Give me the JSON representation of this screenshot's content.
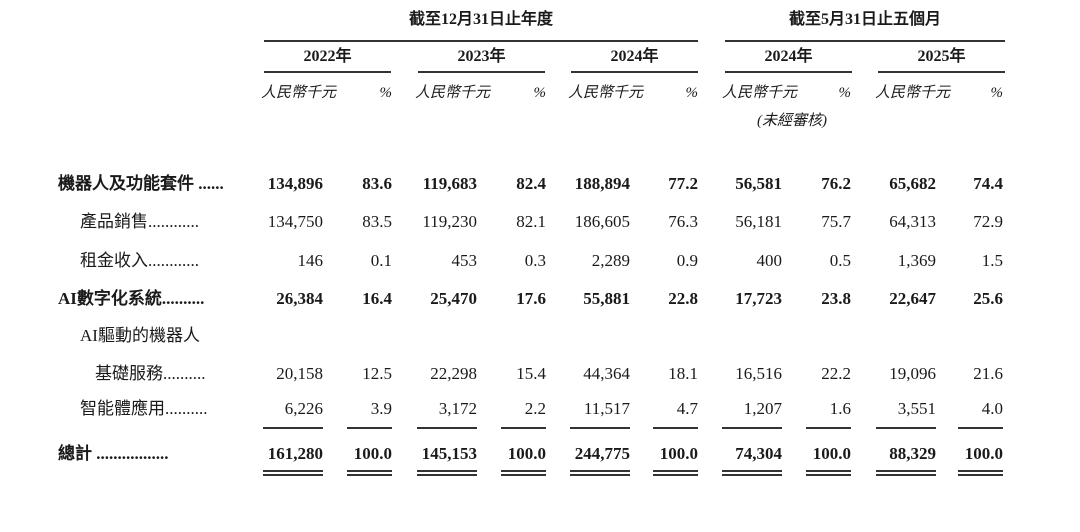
{
  "header": {
    "group1": "截至12月31日止年度",
    "group2": "截至5月31日止五個月",
    "years": [
      "2022年",
      "2023年",
      "2024年",
      "2024年",
      "2025年"
    ],
    "unit": "人民幣千元",
    "pct": "%",
    "unaudited": "(未經審核)"
  },
  "rows": [
    {
      "label": "機器人及功能套件 ......",
      "bold": true,
      "values": [
        "134,896",
        "83.6",
        "119,683",
        "82.4",
        "188,894",
        "77.2",
        "56,581",
        "76.2",
        "65,682",
        "74.4"
      ]
    },
    {
      "label": "產品銷售............",
      "bold": false,
      "values": [
        "134,750",
        "83.5",
        "119,230",
        "82.1",
        "186,605",
        "76.3",
        "56,181",
        "75.7",
        "64,313",
        "72.9"
      ]
    },
    {
      "label": "租金收入............",
      "bold": false,
      "values": [
        "146",
        "0.1",
        "453",
        "0.3",
        "2,289",
        "0.9",
        "400",
        "0.5",
        "1,369",
        "1.5"
      ]
    },
    {
      "label": "AI數字化系統..........",
      "bold": true,
      "values": [
        "26,384",
        "16.4",
        "25,470",
        "17.6",
        "55,881",
        "22.8",
        "17,723",
        "23.8",
        "22,647",
        "25.6"
      ]
    },
    {
      "label": "AI驅動的機器人",
      "bold": false,
      "values": []
    },
    {
      "label": "基礎服務..........",
      "bold": false,
      "values": [
        "20,158",
        "12.5",
        "22,298",
        "15.4",
        "44,364",
        "18.1",
        "16,516",
        "22.2",
        "19,096",
        "21.6"
      ]
    },
    {
      "label": "智能體應用..........",
      "bold": false,
      "values": [
        "6,226",
        "3.9",
        "3,172",
        "2.2",
        "11,517",
        "4.7",
        "1,207",
        "1.6",
        "3,551",
        "4.0"
      ]
    },
    {
      "label": "總計 .................",
      "bold": true,
      "values": [
        "161,280",
        "100.0",
        "145,153",
        "100.0",
        "244,775",
        "100.0",
        "74,304",
        "100.0",
        "88,329",
        "100.0"
      ]
    }
  ]
}
